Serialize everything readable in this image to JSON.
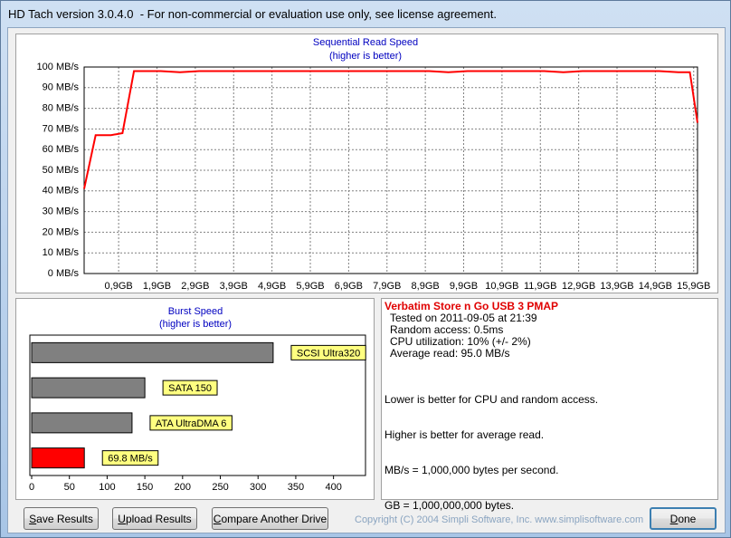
{
  "window": {
    "title": "HD Tach version 3.0.4.0  - For non-commercial or evaluation use only, see license agreement."
  },
  "chart_data": [
    {
      "type": "line",
      "title": "Sequential Read Speed",
      "subtitle": "(higher is better)",
      "x": [
        0,
        0.3,
        0.7,
        1.0,
        1.3,
        2.0,
        2.5,
        3.0,
        4.0,
        5.0,
        6.0,
        7.0,
        8.0,
        9.0,
        9.5,
        10.0,
        11.0,
        12.0,
        12.5,
        13.0,
        14.0,
        15.0,
        15.5,
        15.8,
        16.0
      ],
      "values": [
        41,
        67,
        67,
        68,
        98,
        98,
        97.5,
        98,
        98,
        98,
        98,
        98,
        98,
        98,
        97.5,
        98,
        98,
        98,
        97.5,
        98,
        98,
        98,
        97.5,
        97.5,
        73
      ],
      "color": "#ff0000",
      "xlim": [
        0,
        16
      ],
      "xticks": [
        {
          "value": 0.9,
          "label": "0,9GB"
        },
        {
          "value": 1.9,
          "label": "1,9GB"
        },
        {
          "value": 2.9,
          "label": "2,9GB"
        },
        {
          "value": 3.9,
          "label": "3,9GB"
        },
        {
          "value": 4.9,
          "label": "4,9GB"
        },
        {
          "value": 5.9,
          "label": "5,9GB"
        },
        {
          "value": 6.9,
          "label": "6,9GB"
        },
        {
          "value": 7.9,
          "label": "7,9GB"
        },
        {
          "value": 8.9,
          "label": "8,9GB"
        },
        {
          "value": 9.9,
          "label": "9,9GB"
        },
        {
          "value": 10.9,
          "label": "10,9GB"
        },
        {
          "value": 11.9,
          "label": "11,9GB"
        },
        {
          "value": 12.9,
          "label": "12,9GB"
        },
        {
          "value": 13.9,
          "label": "13,9GB"
        },
        {
          "value": 14.9,
          "label": "14,9GB"
        },
        {
          "value": 15.9,
          "label": "15,9GB"
        }
      ],
      "ylim": [
        0,
        100
      ],
      "yticks": [
        {
          "value": 0,
          "label": "0 MB/s"
        },
        {
          "value": 10,
          "label": "10 MB/s"
        },
        {
          "value": 20,
          "label": "20 MB/s"
        },
        {
          "value": 30,
          "label": "30 MB/s"
        },
        {
          "value": 40,
          "label": "40 MB/s"
        },
        {
          "value": 50,
          "label": "50 MB/s"
        },
        {
          "value": 60,
          "label": "60 MB/s"
        },
        {
          "value": 70,
          "label": "70 MB/s"
        },
        {
          "value": 80,
          "label": "80 MB/s"
        },
        {
          "value": 90,
          "label": "90 MB/s"
        },
        {
          "value": 100,
          "label": "100 MB/s"
        }
      ],
      "grid": true
    },
    {
      "type": "bar",
      "horizontal": true,
      "title": "Burst Speed",
      "subtitle": "(higher is better)",
      "categories": [
        "SCSI Ultra320",
        "SATA 150",
        "ATA UltraDMA 6",
        null
      ],
      "values": [
        320,
        150,
        133,
        69.8
      ],
      "value_labels": [
        null,
        null,
        null,
        "69.8 MB/s"
      ],
      "colors": [
        "#808080",
        "#808080",
        "#808080",
        "#ff0000"
      ],
      "xlim": [
        0,
        440
      ],
      "xticks": [
        0,
        50,
        100,
        150,
        200,
        250,
        300,
        350,
        400
      ]
    }
  ],
  "drive_info": {
    "name": "Verbatim Store n Go USB 3 PMAP",
    "details": [
      "Tested on 2011-09-05 at 21:39",
      "Random access: 0.5ms",
      "CPU utilization: 10% (+/- 2%)",
      "Average read: 95.0 MB/s"
    ],
    "notes": [
      "Lower is better for CPU and random access.",
      "Higher is better for average read.",
      "MB/s = 1,000,000 bytes per second.",
      "GB = 1,000,000,000 bytes."
    ]
  },
  "buttons": [
    "Save Results",
    "Upload Results",
    "Compare Another Drive",
    "Done"
  ],
  "copyright": "Copyright (C) 2004 Simpli Software, Inc. www.simplisoftware.com"
}
